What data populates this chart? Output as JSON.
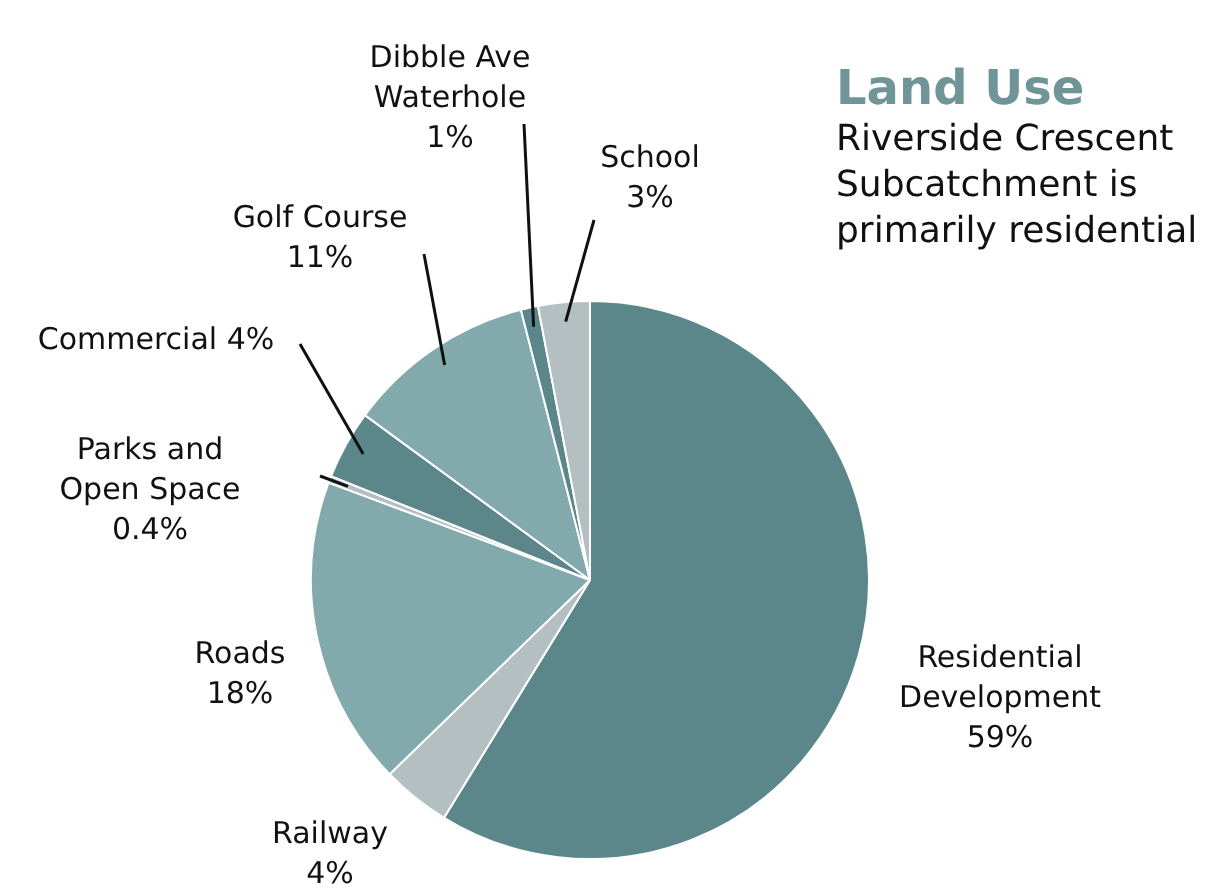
{
  "chart_data": {
    "type": "pie",
    "title": "Land Use",
    "subtitle": "Riverside Crescent Subcatchment is primarily residential",
    "categories": [
      "Residential Development",
      "Railway",
      "Roads",
      "Parks and Open Space",
      "Commercial",
      "Golf Course",
      "Dibble Ave Waterhole",
      "School"
    ],
    "values": [
      59,
      4,
      18,
      0.4,
      4,
      11,
      1,
      3
    ],
    "value_labels": [
      "59%",
      "4%",
      "18%",
      "0.4%",
      "4%",
      "11%",
      "1%",
      "3%"
    ],
    "colors": [
      "#5b878a",
      "#b3bfc1",
      "#82aaac",
      "#b3bfc1",
      "#5b878a",
      "#82aaac",
      "#5b878a",
      "#b3bfc1"
    ],
    "legend": false
  }
}
